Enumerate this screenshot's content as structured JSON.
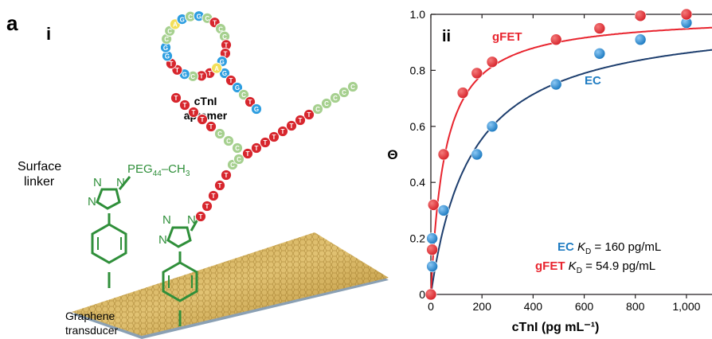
{
  "panel_letter": "a",
  "left_panel": {
    "label": "i",
    "aptamer_label_1": "cTnI",
    "aptamer_label_2": "aptamer",
    "surface_linker_1": "Surface",
    "surface_linker_2": "linker",
    "peg_label": "PEG",
    "peg_sub": "44",
    "peg_suffix": "–CH",
    "peg_suffix_sub": "3",
    "transducer_1": "Graphene",
    "transducer_2": "transducer",
    "triazole_n": "N",
    "base_letters": [
      "A",
      "C",
      "G",
      "T"
    ],
    "colors": {
      "A": "#f2df5a",
      "C": "#a6d08f",
      "G": "#2e9ee0",
      "T": "#d7262d",
      "linker_green": "#2f8f3a"
    }
  },
  "right_panel": {
    "label": "ii",
    "kd_ec_name": "EC",
    "kd_ec_text": " = 160 pg/mL",
    "kd_gfet_name": "gFET",
    "kd_gfet_text": " = 54.9 pg/mL",
    "kd_symbol": "K",
    "kd_sub": "D"
  },
  "chart_data": {
    "type": "scatter",
    "xlabel": "cTnI (pg mL⁻¹)",
    "ylabel": "Θ",
    "xlim": [
      0,
      1100
    ],
    "ylim": [
      0,
      1.0
    ],
    "x_ticks": [
      "0",
      "200",
      "400",
      "600",
      "800",
      "1,000"
    ],
    "y_ticks": [
      "0",
      "0.2",
      "0.4",
      "0.6",
      "0.8",
      "1.0"
    ],
    "series": [
      {
        "name": "gFET",
        "color": "#e8242e",
        "fit_kd": 54.9,
        "points": [
          [
            0,
            0
          ],
          [
            5,
            0.16
          ],
          [
            10,
            0.32
          ],
          [
            50,
            0.5
          ],
          [
            125,
            0.72
          ],
          [
            180,
            0.79
          ],
          [
            240,
            0.83
          ],
          [
            490,
            0.91
          ],
          [
            660,
            0.95
          ],
          [
            820,
            0.995
          ],
          [
            1000,
            1.0
          ]
        ]
      },
      {
        "name": "EC",
        "color": "#1f7cc2",
        "fit_color": "#1d3e6e",
        "fit_kd": 160,
        "points": [
          [
            0,
            0
          ],
          [
            5,
            0.1
          ],
          [
            5,
            0.2
          ],
          [
            50,
            0.3
          ],
          [
            180,
            0.5
          ],
          [
            240,
            0.6
          ],
          [
            490,
            0.75
          ],
          [
            660,
            0.86
          ],
          [
            820,
            0.91
          ],
          [
            1000,
            0.97
          ]
        ]
      }
    ]
  }
}
